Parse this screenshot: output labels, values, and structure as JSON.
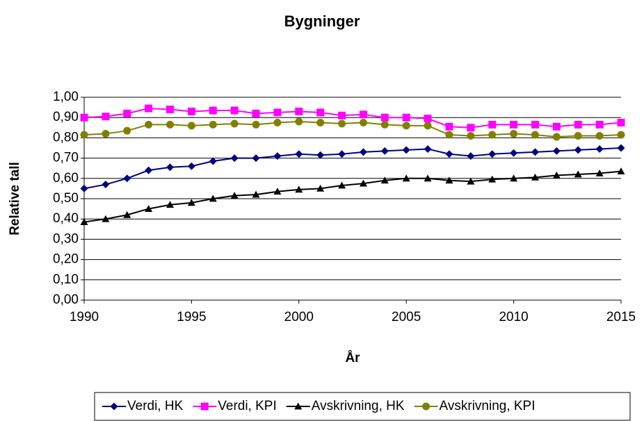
{
  "chart_data": {
    "type": "line",
    "title": "Bygninger",
    "x_label": "År",
    "y_label": "Relative tall",
    "x": [
      1990,
      1991,
      1992,
      1993,
      1994,
      1995,
      1996,
      1997,
      1998,
      1999,
      2000,
      2001,
      2002,
      2003,
      2004,
      2005,
      2006,
      2007,
      2008,
      2009,
      2010,
      2011,
      2012,
      2013,
      2014,
      2015
    ],
    "xlim": [
      1990,
      2015
    ],
    "xticks": [
      1990,
      1995,
      2000,
      2005,
      2010,
      2015
    ],
    "ylim": [
      0,
      1
    ],
    "yticks": [
      {
        "value": 0,
        "label": "0,00"
      },
      {
        "value": 0.1,
        "label": "0,10"
      },
      {
        "value": 0.2,
        "label": "0,20"
      },
      {
        "value": 0.3,
        "label": "0,30"
      },
      {
        "value": 0.4,
        "label": "0,40"
      },
      {
        "value": 0.5,
        "label": "0,50"
      },
      {
        "value": 0.6,
        "label": "0,60"
      },
      {
        "value": 0.7,
        "label": "0,70"
      },
      {
        "value": 0.8,
        "label": "0,80"
      },
      {
        "value": 0.9,
        "label": "0,90"
      },
      {
        "value": 1,
        "label": "1,00"
      }
    ],
    "grid": true,
    "legend": "bottom",
    "series": [
      {
        "name": "Verdi, HK",
        "color": "#000080",
        "marker": "diamond",
        "values": [
          0.55,
          0.57,
          0.6,
          0.64,
          0.655,
          0.66,
          0.685,
          0.7,
          0.7,
          0.71,
          0.72,
          0.715,
          0.72,
          0.73,
          0.735,
          0.74,
          0.745,
          0.72,
          0.71,
          0.72,
          0.725,
          0.73,
          0.735,
          0.74,
          0.745,
          0.75
        ]
      },
      {
        "name": "Verdi, KPI",
        "color": "#ff00ff",
        "marker": "square",
        "values": [
          0.9,
          0.905,
          0.92,
          0.945,
          0.94,
          0.93,
          0.935,
          0.935,
          0.92,
          0.925,
          0.93,
          0.925,
          0.91,
          0.915,
          0.9,
          0.9,
          0.895,
          0.855,
          0.85,
          0.865,
          0.865,
          0.865,
          0.855,
          0.865,
          0.865,
          0.875
        ]
      },
      {
        "name": "Avskrivning, HK",
        "color": "#000000",
        "marker": "triangle",
        "values": [
          0.385,
          0.4,
          0.42,
          0.45,
          0.47,
          0.48,
          0.5,
          0.515,
          0.52,
          0.535,
          0.545,
          0.55,
          0.565,
          0.575,
          0.59,
          0.6,
          0.6,
          0.59,
          0.585,
          0.595,
          0.6,
          0.605,
          0.615,
          0.62,
          0.625,
          0.635
        ]
      },
      {
        "name": "Avskrivning, KPI",
        "color": "#808000",
        "marker": "circle",
        "values": [
          0.815,
          0.82,
          0.835,
          0.865,
          0.865,
          0.86,
          0.865,
          0.87,
          0.865,
          0.875,
          0.88,
          0.875,
          0.87,
          0.875,
          0.865,
          0.86,
          0.86,
          0.815,
          0.81,
          0.815,
          0.82,
          0.815,
          0.805,
          0.81,
          0.81,
          0.815
        ]
      }
    ]
  }
}
